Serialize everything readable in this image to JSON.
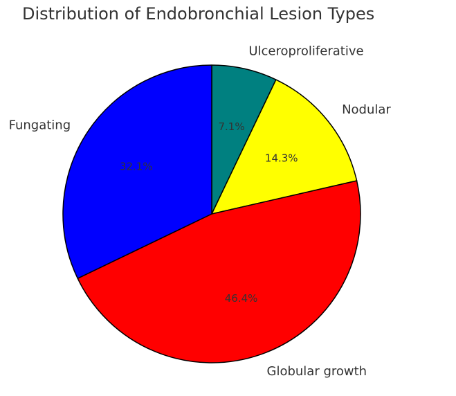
{
  "chart_data": {
    "type": "pie",
    "title": "Distribution of Endobronchial Lesion Types",
    "start_angle": "top (12 o'clock)",
    "direction": "clockwise",
    "slices": [
      {
        "label": "Ulceroproliferative",
        "value": 7.1,
        "pct_label": "7.1%",
        "color": "#008080"
      },
      {
        "label": "Nodular",
        "value": 14.3,
        "pct_label": "14.3%",
        "color": "#ffff00"
      },
      {
        "label": "Globular growth",
        "value": 46.4,
        "pct_label": "46.4%",
        "color": "#ff0000"
      },
      {
        "label": "Fungating",
        "value": 32.1,
        "pct_label": "32.1%",
        "color": "#0000ff"
      }
    ]
  }
}
